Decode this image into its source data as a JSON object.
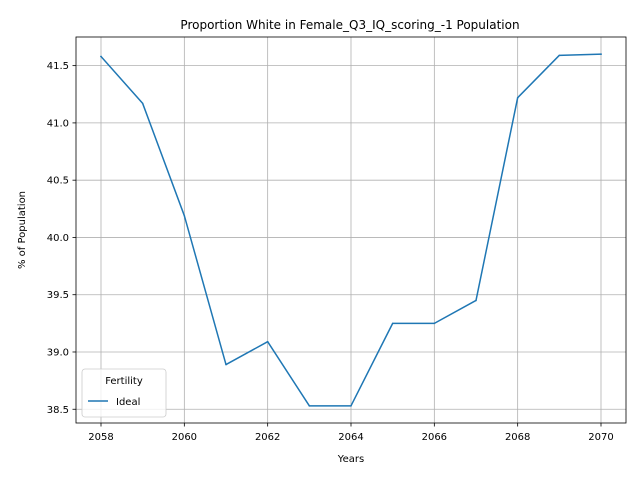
{
  "chart_data": {
    "type": "line",
    "title": "Proportion White in Female_Q3_IQ_scoring_-1 Population",
    "xlabel": "Years",
    "ylabel": "% of Population",
    "xlim": [
      2057.4,
      2070.6
    ],
    "ylim": [
      38.38,
      41.75
    ],
    "xticks": [
      2058,
      2060,
      2062,
      2064,
      2066,
      2068,
      2070
    ],
    "yticks": [
      38.5,
      39.0,
      39.5,
      40.0,
      40.5,
      41.0,
      41.5
    ],
    "xtick_labels": [
      "2058",
      "2060",
      "2062",
      "2064",
      "2066",
      "2068",
      "2070"
    ],
    "ytick_labels": [
      "38.5",
      "39.0",
      "39.5",
      "40.0",
      "40.5",
      "41.0",
      "41.5"
    ],
    "grid": true,
    "legend": {
      "title": "Fertility",
      "placement": "lower-left"
    },
    "x": [
      2058,
      2059,
      2060,
      2061,
      2062,
      2063,
      2064,
      2065,
      2066,
      2067,
      2068,
      2069,
      2070
    ],
    "series": [
      {
        "name": "Ideal",
        "color": "#1f77b4",
        "values": [
          41.58,
          41.17,
          40.19,
          38.89,
          39.09,
          38.53,
          38.53,
          39.25,
          39.25,
          39.45,
          41.22,
          41.59,
          41.6
        ]
      }
    ]
  }
}
